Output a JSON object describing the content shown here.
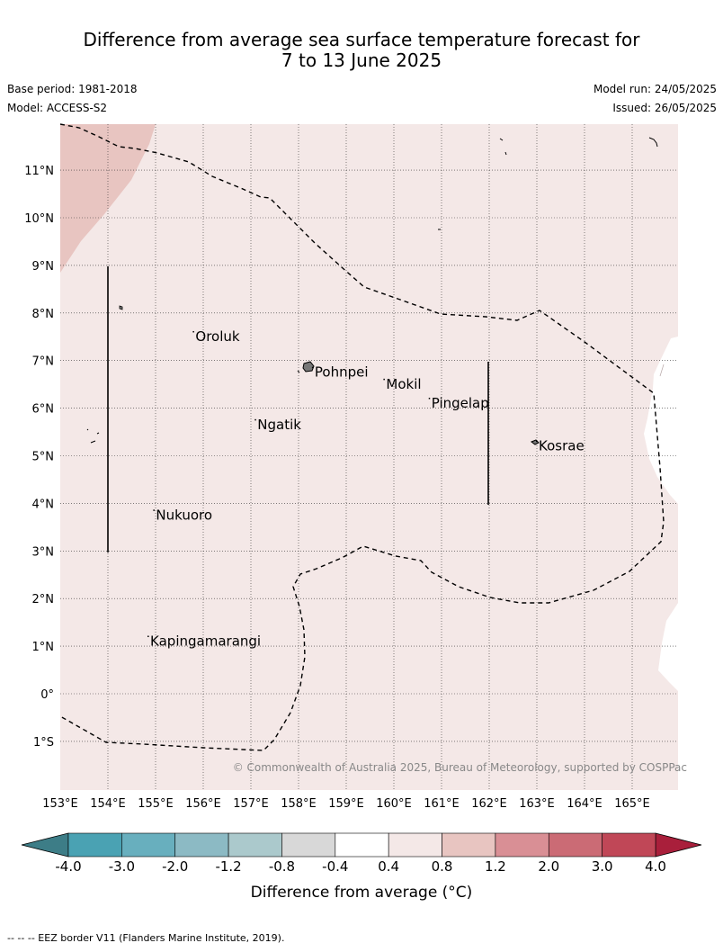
{
  "title_line1": "Difference from average sea surface temperature forecast for",
  "title_line2": "7 to 13 June 2025",
  "base_period": "Base period: 1981-2018",
  "model": "Model: ACCESS-S2",
  "model_run": "Model run: 24/05/2025",
  "issued": "Issued: 26/05/2025",
  "copyright": "© Commonwealth of Australia 2025, Bureau of Meteorology, supported by COSPPac",
  "colorbar_label": "Difference from average (°C)",
  "footnote": "--  --  -- EEZ border V11 (Flanders Marine Institute, 2019).",
  "lon_ticks": [
    "153°E",
    "154°E",
    "155°E",
    "156°E",
    "157°E",
    "158°E",
    "159°E",
    "160°E",
    "161°E",
    "162°E",
    "163°E",
    "164°E",
    "165°E"
  ],
  "lat_ticks": [
    "11°N",
    "10°N",
    "9°N",
    "8°N",
    "7°N",
    "6°N",
    "5°N",
    "4°N",
    "3°N",
    "2°N",
    "1°N",
    "0°",
    "1°S"
  ],
  "places": [
    {
      "name": "Oroluk",
      "lon": 155.8,
      "lat": 7.6
    },
    {
      "name": "Pohnpei",
      "lon": 158.3,
      "lat": 6.85
    },
    {
      "name": "Mokil",
      "lon": 159.8,
      "lat": 6.6
    },
    {
      "name": "Pingelap",
      "lon": 160.75,
      "lat": 6.2
    },
    {
      "name": "Ngatik",
      "lon": 157.1,
      "lat": 5.75
    },
    {
      "name": "Kosrae",
      "lon": 163.0,
      "lat": 5.3
    },
    {
      "name": "Nukuoro",
      "lon": 154.97,
      "lat": 3.85
    },
    {
      "name": "Kapingamarangi",
      "lon": 154.85,
      "lat": 1.2
    }
  ],
  "colorbar": {
    "ticks": [
      "-4.0",
      "-3.0",
      "-2.0",
      "-1.2",
      "-0.8",
      "-0.4",
      "0.4",
      "0.8",
      "1.2",
      "2.0",
      "3.0",
      "4.0"
    ],
    "colors": [
      "#4aa2b3",
      "#68afbe",
      "#8cbac4",
      "#abc9cc",
      "#d8d8d8",
      "#ffffff",
      "#f4e8e7",
      "#e8c5c1",
      "#d98f95",
      "#cb6b75",
      "#c04757"
    ],
    "under_color": "#3d7d87",
    "over_color": "#a91f3b"
  },
  "field": {
    "base_color": "#f4e8e7",
    "warm_color": "#e8c5c1",
    "neutral_color": "#ffffff"
  }
}
